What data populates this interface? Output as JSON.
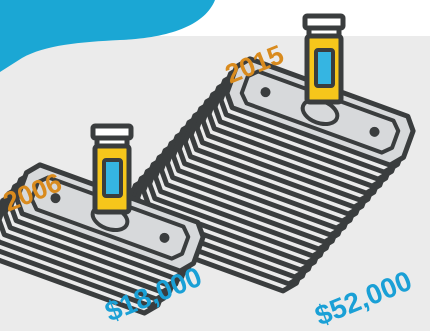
{
  "colors": {
    "background": "#ebebeb",
    "top_band": "#ffffff",
    "accent_blue": "#1ba7d4",
    "outline": "#3a3d3e",
    "bill_fill": "#d7d9db",
    "bottle_yellow": "#f6c61b",
    "bottle_label": "#35b5e2",
    "year_orange": "#d98b1e",
    "amount_blue": "#1aa0d6"
  },
  "comparison": [
    {
      "year": "2006",
      "amount": "$18,000",
      "icons": [
        "money-stack-icon",
        "pill-bottle-icon"
      ]
    },
    {
      "year": "2015",
      "amount": "$52,000",
      "icons": [
        "money-stack-icon",
        "pill-bottle-icon"
      ]
    }
  ]
}
